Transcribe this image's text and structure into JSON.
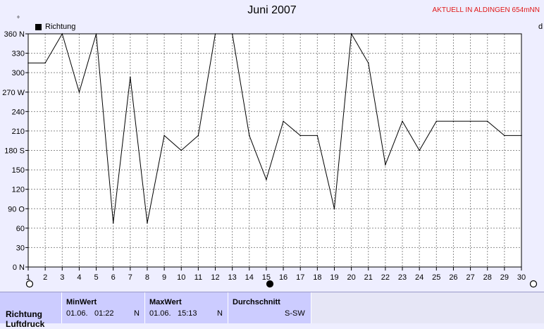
{
  "chart_data": {
    "type": "line",
    "title": "Juni 2007",
    "note": "AKTUELL IN ALDINGEN 654mNN",
    "unit_label": "°",
    "right_label": "d",
    "legend": "Richtung",
    "x": [
      1,
      2,
      3,
      4,
      5,
      6,
      7,
      8,
      9,
      10,
      11,
      12,
      13,
      14,
      15,
      16,
      17,
      18,
      19,
      20,
      21,
      22,
      23,
      24,
      25,
      26,
      27,
      28,
      29,
      30
    ],
    "x_tick_labels": [
      "1",
      "2",
      "3",
      "4",
      "5",
      "6",
      "7",
      "8",
      "9",
      "10",
      "11",
      "12",
      "13",
      "14",
      "15",
      "16",
      "17",
      "18",
      "19",
      "20",
      "21",
      "22",
      "23",
      "24",
      "25",
      "26",
      "27",
      "28",
      "29",
      "30"
    ],
    "y_ticks": [
      {
        "value": 0,
        "label": "0 N"
      },
      {
        "value": 30,
        "label": "30"
      },
      {
        "value": 60,
        "label": "60"
      },
      {
        "value": 90,
        "label": "90 O"
      },
      {
        "value": 120,
        "label": "120"
      },
      {
        "value": 150,
        "label": "150"
      },
      {
        "value": 180,
        "label": "180 S"
      },
      {
        "value": 210,
        "label": "210"
      },
      {
        "value": 240,
        "label": "240"
      },
      {
        "value": 270,
        "label": "270 W"
      },
      {
        "value": 300,
        "label": "300"
      },
      {
        "value": 330,
        "label": "330"
      },
      {
        "value": 360,
        "label": "360 N"
      }
    ],
    "ylim": [
      0,
      360
    ],
    "xlim": [
      1,
      30
    ],
    "grid": true,
    "series": [
      {
        "name": "Richtung",
        "color": "#000000",
        "values": [
          315,
          315,
          360,
          270,
          360,
          68,
          293,
          68,
          203,
          180,
          203,
          360,
          360,
          203,
          135,
          225,
          203,
          203,
          90,
          360,
          315,
          158,
          225,
          180,
          225,
          225,
          225,
          225,
          203,
          203
        ]
      }
    ]
  },
  "table": {
    "row_label": "Richtung",
    "row_label2": "Luftdruck",
    "min_head": "MinWert",
    "min_date": "01.06.",
    "min_time": "01:22",
    "min_dir": "N",
    "max_head": "MaxWert",
    "max_date": "01.06.",
    "max_time": "15:13",
    "max_dir": "N",
    "avg_head": "Durchschnitt",
    "avg_val": "S-SW"
  }
}
